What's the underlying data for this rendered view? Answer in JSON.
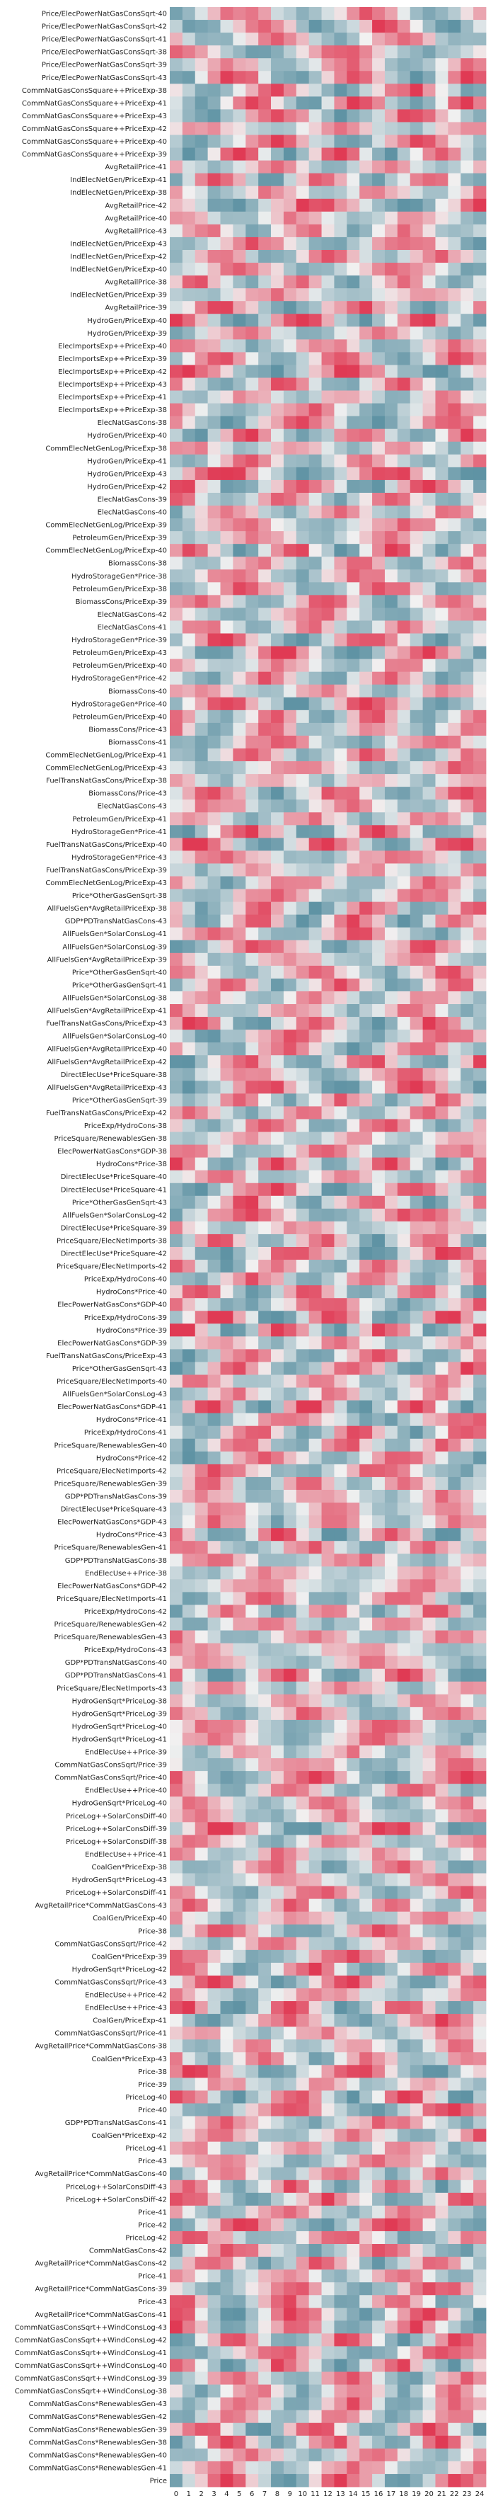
{
  "chart_data": {
    "type": "heatmap",
    "title": "",
    "xlabel": "",
    "ylabel": "",
    "colormap": {
      "low": "#5f93a4",
      "mid": "#f1f1f1",
      "high": "#e03a54"
    },
    "x": [
      "0",
      "1",
      "2",
      "3",
      "4",
      "5",
      "6",
      "7",
      "8",
      "9",
      "10",
      "11",
      "12",
      "13",
      "14",
      "15",
      "16",
      "17",
      "18",
      "19",
      "20",
      "21",
      "22",
      "23",
      "24"
    ],
    "rows": [
      "Price/ElecPowerNatGasConsSqrt-40",
      "Price/ElecPowerNatGasConsSqrt-42",
      "Price/ElecPowerNatGasConsSqrt-41",
      "Price/ElecPowerNatGasConsSqrt-38",
      "Price/ElecPowerNatGasConsSqrt-39",
      "Price/ElecPowerNatGasConsSqrt-43",
      "CommNatGasConsSquare++PriceExp-38",
      "CommNatGasConsSquare++PriceExp-41",
      "CommNatGasConsSquare++PriceExp-43",
      "CommNatGasConsSquare++PriceExp-42",
      "CommNatGasConsSquare++PriceExp-40",
      "CommNatGasConsSquare++PriceExp-39",
      "AvgRetailPrice-41",
      "IndElecNetGen/PriceExp-41",
      "IndElecNetGen/PriceExp-38",
      "AvgRetailPrice-42",
      "AvgRetailPrice-40",
      "AvgRetailPrice-43",
      "IndElecNetGen/PriceExp-43",
      "IndElecNetGen/PriceExp-42",
      "IndElecNetGen/PriceExp-40",
      "AvgRetailPrice-38",
      "IndElecNetGen/PriceExp-39",
      "AvgRetailPrice-39",
      "HydroGen/PriceExp-40",
      "HydroGen/PriceExp-39",
      "ElecImportsExp++PriceExp-40",
      "ElecImportsExp++PriceExp-39",
      "ElecImportsExp++PriceExp-42",
      "ElecImportsExp++PriceExp-43",
      "ElecImportsExp++PriceExp-41",
      "ElecImportsExp++PriceExp-38",
      "ElecNatGasCons-38",
      "HydroGen/PriceExp-40",
      "CommElecNetGenLog/PriceExp-38",
      "HydroGen/PriceExp-41",
      "HydroGen/PriceExp-43",
      "HydroGen/PriceExp-42",
      "ElecNatGasCons-39",
      "ElecNatGasCons-40",
      "CommElecNetGenLog/PriceExp-39",
      "PetroleumGen/PriceExp-39",
      "CommElecNetGenLog/PriceExp-40",
      "BiomassCons-38",
      "HydroStorageGen*Price-38",
      "PetroleumGen/PriceExp-38",
      "BiomassCons/PriceExp-39",
      "ElecNatGasCons-42",
      "ElecNatGasCons-41",
      "HydroStorageGen*Price-39",
      "PetroleumGen/PriceExp-43",
      "PetroleumGen/PriceExp-40",
      "HydroStorageGen*Price-42",
      "BiomassCons-40",
      "HydroStorageGen*Price-40",
      "PetroleumGen/PriceExp-40",
      "BiomassCons/Price-43",
      "BiomassCons-41",
      "CommElecNetGenLog/PriceExp-41",
      "CommElecNetGenLog/PriceExp-43",
      "FuelTransNatGasCons/PriceExp-38",
      "BiomassCons/Price-43",
      "ElecNatGasCons-43",
      "PetroleumGen/PriceExp-41",
      "HydroStorageGen*Price-41",
      "FuelTransNatGasCons/PriceExp-40",
      "HydroStorageGen*Price-43",
      "FuelTransNatGasCons/PriceExp-39",
      "CommElecNetGenLog/PriceExp-43",
      "Price*OtherGasGenSqrt-38",
      "AllFuelsGen*AvgRetailPriceExp-38",
      "GDP*PDTransNatGasCons-43",
      "AllFuelsGen*SolarConsLog-41",
      "AllFuelsGen*SolarConsLog-39",
      "AllFuelsGen*AvgRetailPriceExp-39",
      "Price*OtherGasGenSqrt-40",
      "Price*OtherGasGenSqrt-41",
      "AllFuelsGen*SolarConsLog-38",
      "AllFuelsGen*AvgRetailPriceExp-41",
      "FuelTransNatGasCons/PriceExp-43",
      "AllFuelsGen*SolarConsLog-40",
      "AllFuelsGen*AvgRetailPriceExp-40",
      "AllFuelsGen*AvgRetailPriceExp-42",
      "DirectElecUse*PriceSquare-38",
      "AllFuelsGen*AvgRetailPriceExp-43",
      "Price*OtherGasGenSqrt-39",
      "FuelTransNatGasCons/PriceExp-42",
      "PriceExp/HydroCons-38",
      "PriceSquare/RenewablesGen-38",
      "ElecPowerNatGasCons*GDP-38",
      "HydroCons*Price-38",
      "DirectElecUse*PriceSquare-40",
      "DirectElecUse*PriceSquare-41",
      "Price*OtherGasGenSqrt-43",
      "AllFuelsGen*SolarConsLog-42",
      "DirectElecUse*PriceSquare-39",
      "PriceSquare/ElecNetImports-38",
      "DirectElecUse*PriceSquare-42",
      "PriceSquare/ElecNetImports-42",
      "PriceExp/HydroCons-40",
      "HydroCons*Price-40",
      "ElecPowerNatGasCons*GDP-40",
      "PriceExp/HydroCons-39",
      "HydroCons*Price-39",
      "ElecPowerNatGasCons*GDP-39",
      "FuelTransNatGasCons/PriceExp-43",
      "Price*OtherGasGenSqrt-43",
      "PriceSquare/ElecNetImports-40",
      "AllFuelsGen*SolarConsLog-43",
      "ElecPowerNatGasCons*GDP-41",
      "HydroCons*Price-41",
      "PriceExp/HydroCons-41",
      "PriceSquare/RenewablesGen-40",
      "HydroCons*Price-42",
      "PriceSquare/ElecNetImports-42",
      "PriceSquare/RenewablesGen-39",
      "GDP*PDTransNatGasCons-39",
      "DirectElecUse*PriceSquare-43",
      "ElecPowerNatGasCons*GDP-43",
      "HydroCons*Price-43",
      "PriceSquare/RenewablesGen-41",
      "GDP*PDTransNatGasCons-38",
      "EndElecUse++Price-38",
      "ElecPowerNatGasCons*GDP-42",
      "PriceSquare/ElecNetImports-41",
      "PriceExp/HydroCons-42",
      "PriceSquare/RenewablesGen-42",
      "PriceSquare/RenewablesGen-43",
      "PriceExp/HydroCons-43",
      "GDP*PDTransNatGasCons-40",
      "GDP*PDTransNatGasCons-41",
      "PriceSquare/ElecNetImports-43",
      "HydroGenSqrt*PriceLog-38",
      "HydroGenSqrt*PriceLog-39",
      "HydroGenSqrt*PriceLog-40",
      "HydroGenSqrt*PriceLog-41",
      "EndElecUse++Price-39",
      "CommNatGasConsSqrt/Price-39",
      "CommNatGasConsSqrt/Price-40",
      "EndElecUse++Price-40",
      "HydroGenSqrt*PriceLog-40",
      "PriceLog++SolarConsDiff-40",
      "PriceLog++SolarConsDiff-39",
      "PriceLog++SolarConsDiff-38",
      "EndElecUse++Price-41",
      "CoalGen*PriceExp-38",
      "HydroGenSqrt*PriceLog-43",
      "PriceLog++SolarConsDiff-41",
      "AvgRetailPrice*CommNatGasCons-43",
      "CoalGen/PriceExp-40",
      "Price-38",
      "CommNatGasConsSqrt/Price-42",
      "CoalGen*PriceExp-39",
      "HydroGenSqrt*PriceLog-42",
      "CommNatGasConsSqrt/Price-43",
      "EndElecUse++Price-42",
      "EndElecUse++Price-43",
      "CoalGen/PriceExp-41",
      "CommNatGasConsSqrt/Price-41",
      "AvgRetailPrice*CommNatGasCons-38",
      "CoalGen*PriceExp-43",
      "Price-38",
      "Price-39",
      "PriceLog-40",
      "Price-40",
      "GDP*PDTransNatGasCons-41",
      "CoalGen*PriceExp-42",
      "PriceLog-41",
      "Price-43",
      "AvgRetailPrice*CommNatGasCons-40",
      "PriceLog++SolarConsDiff-43",
      "PriceLog++SolarConsDiff-42",
      "Price-41",
      "Price-42",
      "PriceLog-42",
      "CommNatGasCons-42",
      "AvgRetailPrice*CommNatGasCons-42",
      "Price-41",
      "AvgRetailPrice*CommNatGasCons-39",
      "Price-43",
      "AvgRetailPrice*CommNatGasCons-41",
      "CommNatGasConsSqrt++WindConsLog-43",
      "CommNatGasConsSqrt++WindConsLog-42",
      "CommNatGasConsSqrt++WindConsLog-41",
      "CommNatGasConsSqrt++WindConsLog-40",
      "CommNatGasConsSqrt++WindConsLog-39",
      "CommNatGasConsSqrt++WindConsLog-38",
      "CommNatGasCons*RenewablesGen-43",
      "CommNatGasCons*RenewablesGen-42",
      "CommNatGasCons*RenewablesGen-39",
      "CommNatGasCons*RenewablesGen-38",
      "CommNatGasCons*RenewablesGen-40",
      "CommNatGasCons*RenewablesGen-41",
      "Price"
    ],
    "z_generation": {
      "description": "",
      "note": ""
    },
    "grid": false,
    "colorbar": false
  }
}
